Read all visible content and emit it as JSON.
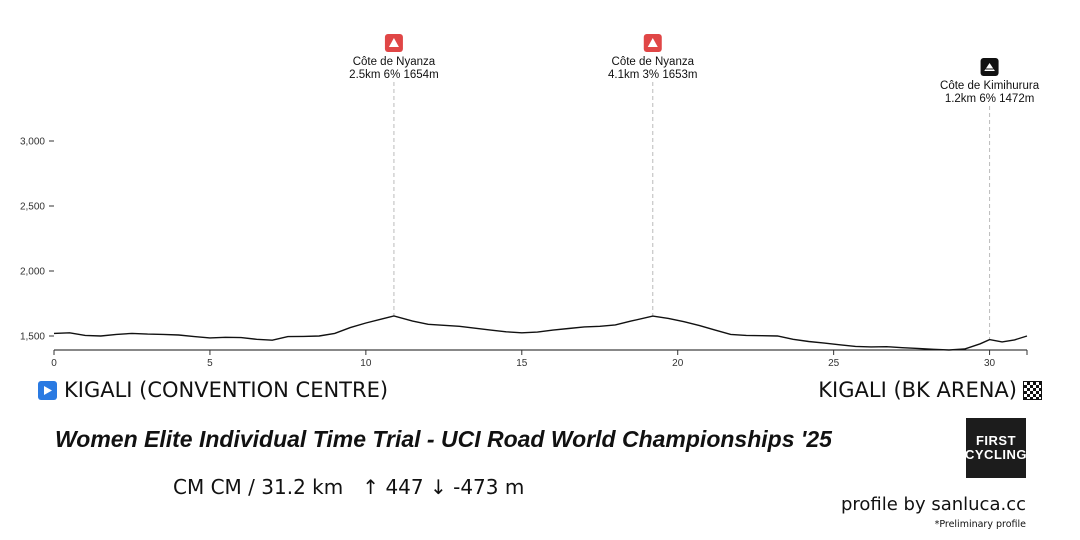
{
  "chart_data": {
    "type": "line",
    "title": "",
    "xlabel": "",
    "ylabel": "",
    "xlim": [
      0,
      31.2
    ],
    "ylim": [
      1400,
      3200
    ],
    "x_ticks": [
      0,
      5,
      10,
      15,
      20,
      25,
      30
    ],
    "y_ticks": [
      1500,
      2000,
      2500,
      3000
    ],
    "y_tick_labels": [
      "1,500",
      "2,000",
      "2,500",
      "3,000"
    ],
    "grid": false,
    "series": [
      {
        "name": "",
        "x": [
          0,
          0.5,
          1,
          1.5,
          2,
          2.5,
          3,
          3.5,
          4,
          4.5,
          5,
          5.5,
          6,
          6.5,
          7,
          7.5,
          8,
          8.5,
          9,
          9.5,
          10,
          10.5,
          10.9,
          11.5,
          12,
          12.5,
          13,
          13.5,
          14,
          14.5,
          15,
          15.5,
          16,
          16.5,
          17,
          17.5,
          18,
          18.5,
          19.2,
          19.7,
          20.2,
          20.7,
          21.2,
          21.7,
          22.2,
          22.7,
          23.2,
          23.7,
          24.2,
          24.7,
          25.2,
          25.7,
          26.2,
          26.7,
          27.2,
          27.7,
          28.2,
          28.7,
          29.2,
          29.7,
          30,
          30.4,
          30.8,
          31.2
        ],
        "y": [
          1520,
          1525,
          1505,
          1500,
          1512,
          1520,
          1515,
          1512,
          1508,
          1495,
          1485,
          1490,
          1488,
          1475,
          1468,
          1495,
          1497,
          1500,
          1520,
          1565,
          1600,
          1630,
          1654,
          1615,
          1590,
          1582,
          1575,
          1560,
          1545,
          1532,
          1525,
          1530,
          1545,
          1558,
          1570,
          1575,
          1585,
          1615,
          1653,
          1635,
          1610,
          1580,
          1545,
          1512,
          1505,
          1502,
          1500,
          1475,
          1458,
          1445,
          1432,
          1420,
          1416,
          1418,
          1410,
          1405,
          1398,
          1392,
          1400,
          1440,
          1472,
          1455,
          1470,
          1500
        ]
      }
    ],
    "climbs": [
      {
        "name": "Côte de Nyanza",
        "detail": "2.5km 6% 1654m",
        "km": 10.9,
        "icon": "red-mountain-icon"
      },
      {
        "name": "Côte de Nyanza",
        "detail": "4.1km 3% 1653m",
        "km": 19.2,
        "icon": "red-mountain-icon"
      },
      {
        "name": "Côte de Kimihurura",
        "detail": "1.2km 6% 1472m",
        "km": 30.0,
        "icon": "black-summit-icon"
      }
    ]
  },
  "start_label": "KIGALI (CONVENTION CENTRE)",
  "finish_label": "KIGALI (BK ARENA)",
  "race_title": "Women Elite Individual Time Trial - UCI Road World Championships '25",
  "stats": {
    "prefix": "CM CM",
    "distance": "31.2 km",
    "ascent": "447",
    "descent": "-473 m"
  },
  "logo": {
    "line1": "FIRST",
    "line2": "CYCLING"
  },
  "credit": "profile by sanluca.cc",
  "note": "*Preliminary profile",
  "colors": {
    "climb_red": "#e04646",
    "start_blue": "#2a7ae2",
    "line": "#111111"
  }
}
